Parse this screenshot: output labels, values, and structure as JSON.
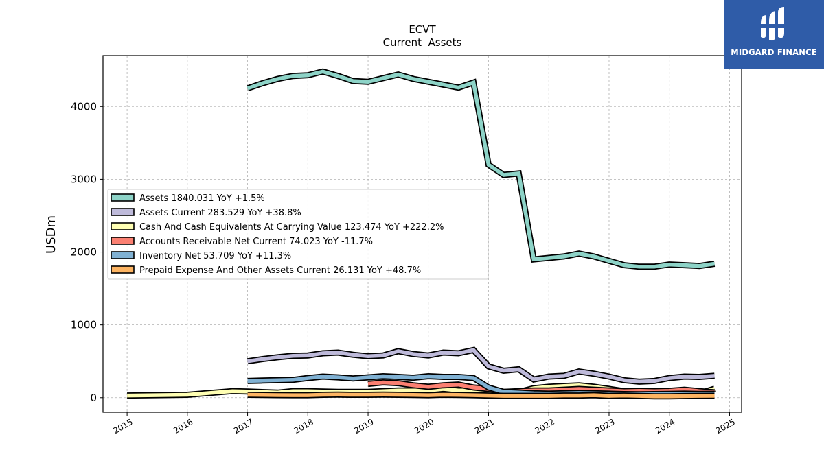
{
  "brand": {
    "name": "MIDGARD FINANCE",
    "bg_color": "#2f5ca8"
  },
  "chart_data": {
    "type": "line",
    "title": "ECVT",
    "subtitle": "Current  Assets",
    "ylabel": "USDm",
    "xlabel": "",
    "xlim": [
      2014.6,
      2025.2
    ],
    "ylim": [
      -200,
      4700
    ],
    "x_ticks": [
      2015,
      2016,
      2017,
      2018,
      2019,
      2020,
      2021,
      2022,
      2023,
      2024,
      2025
    ],
    "y_ticks": [
      0,
      1000,
      2000,
      3000,
      4000
    ],
    "grid": true,
    "legend_position": "center-left",
    "series": [
      {
        "name": "Assets  1840.031 YoY +1.5%",
        "color": "#8dd3c7",
        "x": [
          2017.0,
          2017.25,
          2017.5,
          2017.75,
          2018.0,
          2018.25,
          2018.5,
          2018.75,
          2019.0,
          2019.25,
          2019.5,
          2019.75,
          2020.0,
          2020.25,
          2020.5,
          2020.75,
          2021.0,
          2021.25,
          2021.5,
          2021.75,
          2022.0,
          2022.25,
          2022.5,
          2022.75,
          2023.0,
          2023.25,
          2023.5,
          2023.75,
          2024.0,
          2024.25,
          2024.5,
          2024.75
        ],
        "y": [
          4250,
          4320,
          4380,
          4420,
          4430,
          4480,
          4420,
          4350,
          4340,
          4390,
          4440,
          4380,
          4340,
          4300,
          4260,
          4330,
          3200,
          3060,
          3080,
          1900,
          1920,
          1940,
          1980,
          1940,
          1880,
          1820,
          1800,
          1800,
          1830,
          1820,
          1810,
          1840
        ]
      },
      {
        "name": "Assets Current  283.529 YoY +38.8%",
        "color": "#bebada",
        "x": [
          2017.0,
          2017.25,
          2017.5,
          2017.75,
          2018.0,
          2018.25,
          2018.5,
          2018.75,
          2019.0,
          2019.25,
          2019.5,
          2019.75,
          2020.0,
          2020.25,
          2020.5,
          2020.75,
          2021.0,
          2021.25,
          2021.5,
          2021.75,
          2022.0,
          2022.25,
          2022.5,
          2022.75,
          2023.0,
          2023.25,
          2023.5,
          2023.75,
          2024.0,
          2024.25,
          2024.5,
          2024.75
        ],
        "y": [
          500,
          530,
          555,
          575,
          580,
          610,
          620,
          590,
          570,
          580,
          640,
          600,
          580,
          620,
          610,
          655,
          430,
          370,
          390,
          250,
          290,
          300,
          360,
          330,
          290,
          240,
          220,
          230,
          270,
          290,
          285,
          300
        ]
      },
      {
        "name": "Cash And Cash Equivalents At Carrying Value  123.474 YoY +222.2%",
        "color": "#ffffb3",
        "x": [
          2015.0,
          2016.0,
          2016.75,
          2017.0,
          2017.5,
          2017.75,
          2018.0,
          2018.5,
          2019.0,
          2019.5,
          2020.0,
          2020.25,
          2020.5,
          2020.75,
          2021.0,
          2021.25,
          2021.5,
          2021.75,
          2022.0,
          2022.25,
          2022.5,
          2022.75,
          2023.0,
          2023.5,
          2024.0,
          2024.5,
          2024.75
        ],
        "y": [
          30,
          40,
          90,
          85,
          70,
          90,
          90,
          80,
          80,
          100,
          100,
          120,
          100,
          100,
          90,
          70,
          80,
          130,
          150,
          160,
          170,
          150,
          120,
          60,
          50,
          60,
          123
        ]
      },
      {
        "name": "Accounts Receivable Net Current  74.023 YoY -11.7%",
        "color": "#fb8072",
        "x": [
          2019.0,
          2019.25,
          2019.5,
          2019.75,
          2020.0,
          2020.25,
          2020.5,
          2020.75,
          2021.0,
          2021.25,
          2021.5,
          2021.75,
          2022.0,
          2022.25,
          2022.5,
          2022.75,
          2023.0,
          2023.25,
          2023.5,
          2023.75,
          2024.0,
          2024.25,
          2024.5,
          2024.75
        ],
        "y": [
          190,
          210,
          200,
          170,
          150,
          170,
          180,
          140,
          120,
          80,
          90,
          100,
          100,
          110,
          120,
          110,
          100,
          90,
          95,
          90,
          95,
          110,
          90,
          74
        ]
      },
      {
        "name": "Inventory Net  53.709 YoY +11.3%",
        "color": "#80b1d3",
        "x": [
          2017.0,
          2017.25,
          2017.5,
          2017.75,
          2018.0,
          2018.25,
          2018.5,
          2018.75,
          2019.0,
          2019.25,
          2019.5,
          2019.75,
          2020.0,
          2020.25,
          2020.5,
          2020.75,
          2021.0,
          2021.25,
          2021.5,
          2021.75,
          2022.0,
          2022.25,
          2022.5,
          2022.75,
          2023.0,
          2023.25,
          2023.5,
          2023.75,
          2024.0,
          2024.25,
          2024.5,
          2024.75
        ],
        "y": [
          230,
          235,
          240,
          245,
          270,
          290,
          280,
          265,
          280,
          295,
          285,
          275,
          295,
          285,
          285,
          270,
          140,
          80,
          70,
          60,
          55,
          60,
          65,
          60,
          55,
          50,
          48,
          50,
          52,
          55,
          52,
          54
        ]
      },
      {
        "name": "Prepaid Expense And Other Assets Current  26.131 YoY +48.7%",
        "color": "#fdb462",
        "x": [
          2017.0,
          2017.25,
          2017.5,
          2017.75,
          2018.0,
          2018.25,
          2018.5,
          2018.75,
          2019.0,
          2019.25,
          2019.5,
          2019.75,
          2020.0,
          2020.25,
          2020.5,
          2020.75,
          2021.0,
          2021.25,
          2021.5,
          2021.75,
          2022.0,
          2022.25,
          2022.5,
          2022.75,
          2023.0,
          2023.25,
          2023.5,
          2023.75,
          2024.0,
          2024.25,
          2024.5,
          2024.75
        ],
        "y": [
          40,
          38,
          36,
          35,
          35,
          40,
          42,
          40,
          40,
          42,
          40,
          38,
          35,
          40,
          38,
          35,
          30,
          25,
          25,
          25,
          25,
          30,
          30,
          35,
          25,
          30,
          25,
          20,
          20,
          22,
          25,
          26
        ]
      }
    ]
  }
}
